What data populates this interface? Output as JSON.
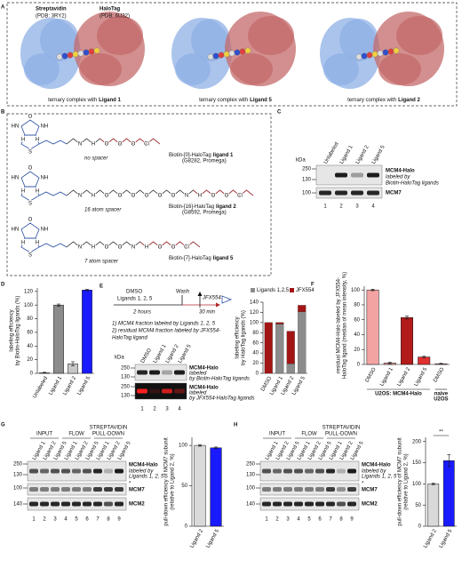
{
  "panel_a": {
    "label": "A",
    "streptavidin": "Streptavidin",
    "streptavidin_pdb": "(PDB: 3RY2)",
    "halotag": "HaloTag",
    "halotag_pdb": "(PDB: 6U32)",
    "captions": [
      {
        "text": "ternary complex with",
        "ligand": "Ligand 1"
      },
      {
        "text": "ternary complex with",
        "ligand": "Ligand 5"
      },
      {
        "text": "ternary complex with",
        "ligand": "Ligand 2"
      }
    ]
  },
  "panel_b": {
    "label": "B",
    "biotin_atoms": [
      "O",
      "HN",
      "NH",
      "H",
      "H",
      "S"
    ],
    "structures": [
      {
        "name": "Biotin-[0]-HaloTag",
        "ligand": "ligand 1",
        "catalog": "(G8282, Promega)",
        "spacer": "no spacer",
        "atoms": [
          "N",
          "H",
          "O",
          "O",
          "O",
          "Cl"
        ]
      },
      {
        "name": "Biotin-[16]-HaloTag",
        "ligand": "ligand 2",
        "catalog": "(G8592, Promega)",
        "spacer": "16 atom spacer",
        "atoms": [
          "N",
          "H",
          "O",
          "O",
          "O",
          "O",
          "O",
          "O",
          "N",
          "H",
          "O",
          "O",
          "Cl"
        ]
      },
      {
        "name": "Biotin-[7]-HaloTag",
        "ligand": "ligand 5",
        "spacer": "7 atom spacer",
        "atoms": [
          "N",
          "H",
          "O",
          "O",
          "N",
          "H",
          "O",
          "O",
          "Cl"
        ]
      }
    ]
  },
  "panel_c": {
    "label": "C",
    "kda": "kDa",
    "lanes": [
      "Unlabeled",
      "Ligand 1",
      "Ligand 2",
      "Ligand 5"
    ],
    "markers": [
      "250",
      "130",
      "100"
    ],
    "band_label": "MCM4-Halo",
    "band_note": [
      "labeled by",
      "Biotin-HaloTag ligands"
    ],
    "loading": "MCM7",
    "lane_numbers": [
      "1",
      "2",
      "3",
      "4"
    ]
  },
  "panel_d": {
    "label": "D"
  },
  "panel_e": {
    "label": "E",
    "dmso": "DMSO",
    "ligands": "Ligands 1, 2, 5",
    "time1": "2 hours",
    "wash": "Wash",
    "jfx": "JFX554",
    "time2": "30 min",
    "notes": [
      "1) MCM4 fraction labeled by Ligands 1, 2, 5",
      "2) residual MCM4 fraction labeled by JFX554-",
      "HaloTag ligand"
    ],
    "blot": {
      "kda": "kDa",
      "lanes": [
        "DMSO",
        "Ligand 1",
        "Ligand 2",
        "Ligand 5"
      ],
      "markers": [
        "250",
        "130"
      ],
      "band_label": "MCM4-Halo",
      "notes1": [
        "labeled",
        "by Biotin-HaloTag ligands"
      ],
      "notes2": [
        "labeled",
        "by JFX554-HaloTag ligands"
      ],
      "lane_numbers": [
        "1",
        "2",
        "3",
        "4"
      ]
    }
  },
  "panel_f": {
    "label": "F"
  },
  "panel_g": {
    "label": "G",
    "groups": [
      "INPUT",
      "FLOW"
    ],
    "pulldown": [
      "STREPTAVIDIN",
      "PULL-DOWN"
    ],
    "lanes": [
      "Ligand 1",
      "Ligand 2",
      "Ligand 5",
      "Ligand 1",
      "Ligand 2",
      "Ligand 5",
      "Ligand 1",
      "Ligand 2",
      "Ligand 5"
    ],
    "lane_numbers": [
      "1",
      "2",
      "3",
      "4",
      "5",
      "6",
      "7",
      "8",
      "9"
    ],
    "markers": [
      "250",
      "130",
      "100",
      "140"
    ],
    "band_label": "MCM4-Halo",
    "band_note": [
      "labeled by",
      "Ligands 1, 2, 5"
    ],
    "star": "*",
    "mcm7": "MCM7",
    "mcm2": "MCM2"
  },
  "panel_h": {
    "label": "H",
    "groups": [
      "INPUT",
      "FLOW"
    ],
    "pulldown": [
      "STREPTAVIDIN",
      "PULL-DOWN"
    ],
    "lanes": [
      "Ligand 1",
      "Ligand 2",
      "Ligand 5",
      "Ligand 1",
      "Ligand 2",
      "Ligand 5",
      "Ligand 1",
      "Ligand 2",
      "Ligand 5"
    ],
    "lane_numbers": [
      "1",
      "2",
      "3",
      "4",
      "5",
      "6",
      "7",
      "8",
      "9"
    ],
    "markers": [
      "250",
      "130",
      "100",
      "140"
    ],
    "band_label": "MCM4-Halo",
    "band_note": [
      "labeled by",
      "Ligands 1, 2, 5"
    ],
    "star": "*",
    "mcm7": "MCM7",
    "mcm2": "MCM2"
  },
  "chart_data": [
    {
      "type": "bar",
      "categories": [
        "Unlabeled",
        "Ligand 1",
        "Ligand 2",
        "Ligand 5"
      ],
      "values": [
        1,
        100,
        14,
        122
      ],
      "errors": [
        0.5,
        1.5,
        3,
        1
      ],
      "colors": [
        "#ffffff",
        "#8c8c8c",
        "#c8c8c8",
        "#1a1aff"
      ],
      "ylim": [
        0,
        125
      ],
      "yticks": [
        0,
        20,
        40,
        60,
        80,
        100,
        120
      ],
      "ylabel": [
        "labeling efficiency",
        "by Biotin-HaloTag ligands (%)"
      ]
    },
    {
      "type": "stacked_bar",
      "categories": [
        "DMSO",
        "Ligand 1",
        "Ligand 2",
        "Ligand 5"
      ],
      "series": [
        {
          "name": "Ligands 1,2,5",
          "color": "#8c8c8c",
          "values": [
            0,
            97,
            19,
            121
          ]
        },
        {
          "name": "JFX554",
          "color": "#a31515",
          "values": [
            100,
            3,
            64,
            13
          ]
        }
      ],
      "ylim": [
        0,
        140
      ],
      "yticks": [
        0,
        20,
        40,
        60,
        80,
        100,
        120,
        140
      ],
      "ylabel": [
        "labeling efficiency",
        "by HaloTag ligands (%)"
      ]
    },
    {
      "type": "bar",
      "categories": [
        "DMSO",
        "Ligand 1",
        "Ligand 2",
        "Ligand 5",
        "DMSO"
      ],
      "values": [
        100,
        2,
        63,
        10,
        1
      ],
      "errors": [
        1,
        1,
        2,
        1,
        0.5
      ],
      "colors": [
        "#f4a3a3",
        "#f4a3a3",
        "#b31b1b",
        "#e03030",
        "#f4a3a3"
      ],
      "ylim": [
        0,
        105
      ],
      "yticks": [
        0,
        20,
        40,
        60,
        80,
        100
      ],
      "ylabel": [
        "residual MCM4-Halo labeled by JFX554-",
        "HaloTag ligand (median of mean intensity, %)"
      ],
      "group_labels": [
        [
          "U2OS: MCM4-Halo"
        ],
        [
          "naive",
          "U2OS"
        ]
      ]
    },
    {
      "type": "bar",
      "categories": [
        "Ligand 2",
        "Ligand 5"
      ],
      "values": [
        100,
        97
      ],
      "errors": [
        1,
        1
      ],
      "colors": [
        "#d9d9d9",
        "#1a1aff"
      ],
      "ylim": [
        0,
        110
      ],
      "yticks": [
        0,
        50,
        100
      ],
      "ylabel": [
        "pull-down efficiency of MCM7 subunit",
        "(relative to Ligand 2, %)"
      ]
    },
    {
      "type": "bar",
      "categories": [
        "Ligand 2",
        "Ligand 5"
      ],
      "values": [
        100,
        155
      ],
      "errors": [
        2,
        14
      ],
      "colors": [
        "#d9d9d9",
        "#1a1aff"
      ],
      "ylim": [
        0,
        210
      ],
      "yticks": [
        0,
        50,
        100,
        150,
        200
      ],
      "ylabel": [
        "pull-down efficiency of MCM7 subunit",
        "(relative to Ligand 2, %)"
      ],
      "annotation": "**"
    }
  ]
}
